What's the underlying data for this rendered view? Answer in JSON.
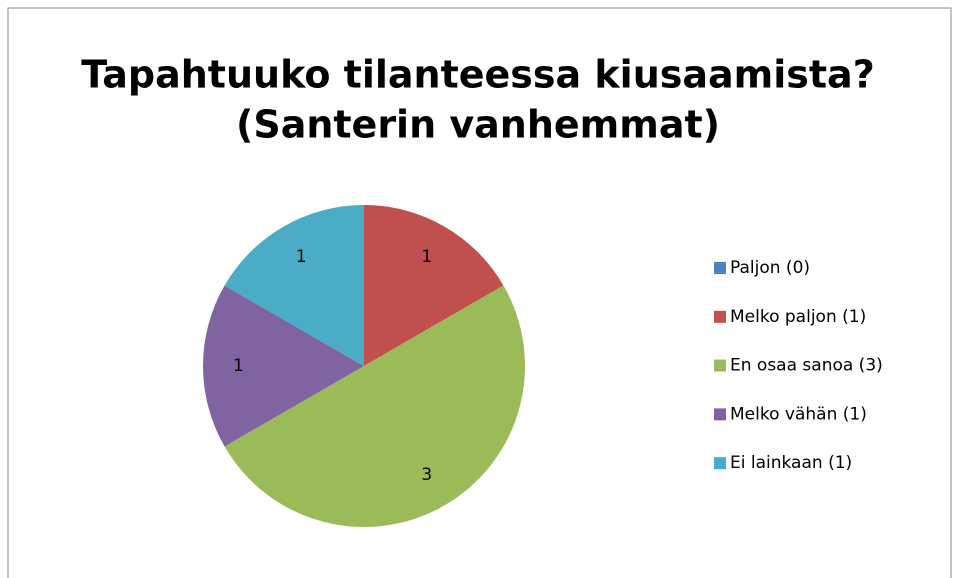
{
  "chart_data": {
    "type": "pie",
    "title": [
      "Tapahtuuko tilanteessa kiusaamista?",
      "(Santerin vanhemmat)"
    ],
    "categories": [
      "Paljon (0)",
      "Melko paljon (1)",
      "En osaa sanoa (3)",
      "Melko vähän (1)",
      "Ei lainkaan (1)"
    ],
    "values": [
      0,
      1,
      3,
      1,
      1
    ],
    "colors": [
      "#4f81bd",
      "#c0504d",
      "#9bbb59",
      "#8064a2",
      "#4bacc6"
    ],
    "legend": "right"
  }
}
